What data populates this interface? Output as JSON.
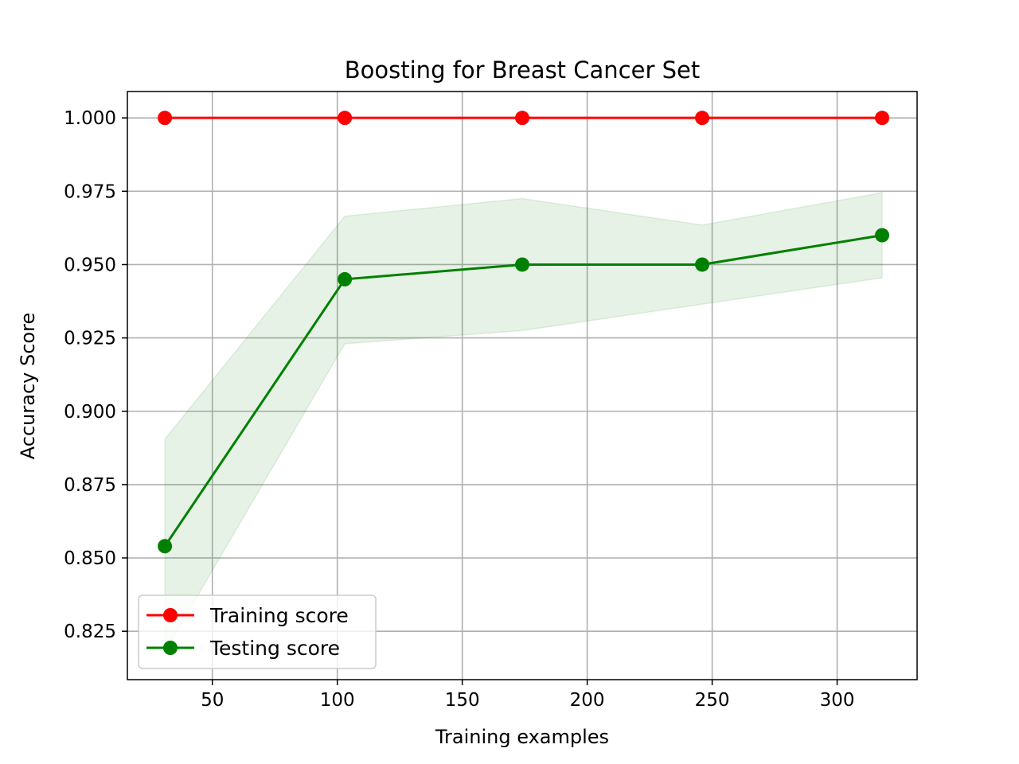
{
  "chart_data": {
    "type": "line",
    "title": "Boosting for Breast Cancer Set",
    "xlabel": "Training examples",
    "ylabel": "Accuracy Score",
    "xlim": [
      16,
      332
    ],
    "ylim": [
      0.8085,
      1.009
    ],
    "xticks": [
      50,
      100,
      150,
      200,
      250,
      300
    ],
    "xtick_labels": [
      "50",
      "100",
      "150",
      "200",
      "250",
      "300"
    ],
    "yticks": [
      0.825,
      0.85,
      0.875,
      0.9,
      0.925,
      0.95,
      0.975,
      1.0
    ],
    "ytick_labels": [
      "0.825",
      "0.850",
      "0.875",
      "0.900",
      "0.925",
      "0.950",
      "0.975",
      "1.000"
    ],
    "grid": true,
    "legend_position": "lower-left",
    "x": [
      31,
      103,
      174,
      246,
      318
    ],
    "series": [
      {
        "name": "Training score",
        "color": "#ff0000",
        "marker": "circle",
        "values": [
          1.0,
          1.0,
          1.0,
          1.0,
          1.0
        ],
        "band_lower": [
          1.0,
          1.0,
          1.0,
          1.0,
          1.0
        ],
        "band_upper": [
          1.0,
          1.0,
          1.0,
          1.0,
          1.0
        ]
      },
      {
        "name": "Testing score",
        "color": "#008000",
        "marker": "circle",
        "values": [
          0.854,
          0.945,
          0.95,
          0.95,
          0.96
        ],
        "band_lower": [
          0.818,
          0.923,
          0.9275,
          0.9365,
          0.9455
        ],
        "band_upper": [
          0.8905,
          0.9665,
          0.9725,
          0.9635,
          0.9745
        ]
      }
    ]
  }
}
